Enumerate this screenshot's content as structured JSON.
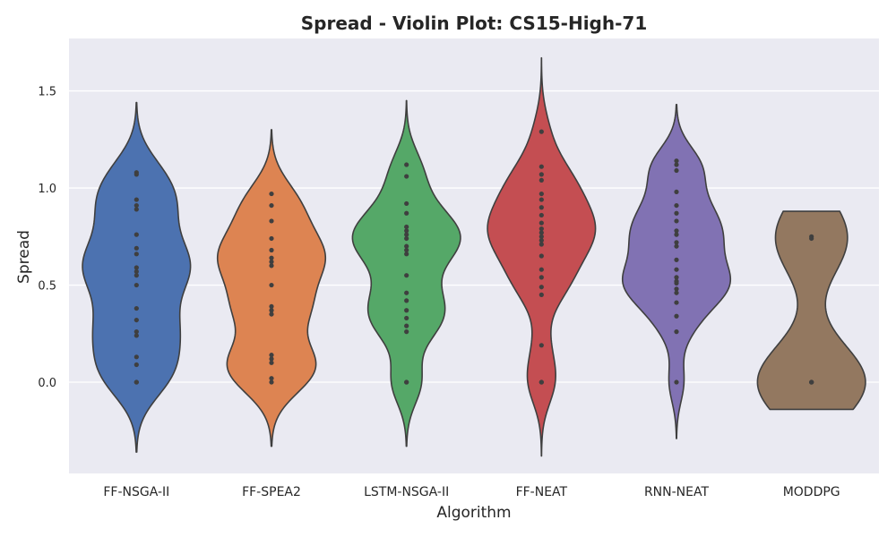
{
  "chart_data": {
    "type": "violin",
    "title": "Spread - Violin Plot: CS15-High-71",
    "xlabel": "Algorithm",
    "ylabel": "Spread",
    "ylim": [
      -0.47,
      1.77
    ],
    "yticks": [
      0.0,
      0.5,
      1.0,
      1.5
    ],
    "ytick_labels": [
      "0.0",
      "0.5",
      "1.0",
      "1.5"
    ],
    "grid": true,
    "background": "#EAEAF2",
    "categories": [
      "FF-NSGA-II",
      "FF-SPEA2",
      "LSTM-NSGA-II",
      "FF-NEAT",
      "RNN-NEAT",
      "MODDPG"
    ],
    "series": [
      {
        "name": "FF-NSGA-II",
        "color": "#4C72B0",
        "extent": [
          -0.36,
          1.44
        ],
        "points": [
          1.08,
          1.07,
          0.94,
          0.91,
          0.89,
          0.76,
          0.69,
          0.66,
          0.59,
          0.57,
          0.55,
          0.5,
          0.38,
          0.32,
          0.26,
          0.24,
          0.13,
          0.09,
          0.0,
          0.0
        ]
      },
      {
        "name": "FF-SPEA2",
        "color": "#DD8452",
        "extent": [
          -0.33,
          1.3
        ],
        "points": [
          0.97,
          0.91,
          0.83,
          0.74,
          0.68,
          0.64,
          0.62,
          0.6,
          0.5,
          0.39,
          0.37,
          0.35,
          0.14,
          0.12,
          0.1,
          0.02,
          0.0
        ]
      },
      {
        "name": "LSTM-NSGA-II",
        "color": "#55A868",
        "extent": [
          -0.33,
          1.45
        ],
        "points": [
          1.12,
          1.06,
          0.92,
          0.87,
          0.8,
          0.78,
          0.76,
          0.74,
          0.7,
          0.68,
          0.66,
          0.55,
          0.46,
          0.42,
          0.37,
          0.33,
          0.29,
          0.26,
          0.0,
          0.0
        ]
      },
      {
        "name": "FF-NEAT",
        "color": "#C44E52",
        "extent": [
          -0.38,
          1.67
        ],
        "points": [
          1.29,
          1.11,
          1.07,
          1.04,
          0.97,
          0.94,
          0.9,
          0.86,
          0.82,
          0.79,
          0.77,
          0.75,
          0.73,
          0.71,
          0.65,
          0.58,
          0.54,
          0.49,
          0.45,
          0.19,
          0.0,
          0.0
        ]
      },
      {
        "name": "RNN-NEAT",
        "color": "#8172B3",
        "extent": [
          -0.29,
          1.43
        ],
        "points": [
          1.14,
          1.12,
          1.09,
          0.98,
          0.91,
          0.87,
          0.83,
          0.78,
          0.76,
          0.72,
          0.7,
          0.63,
          0.58,
          0.54,
          0.52,
          0.51,
          0.48,
          0.46,
          0.41,
          0.34,
          0.26,
          0.0
        ]
      },
      {
        "name": "MODDPG",
        "color": "#937860",
        "extent": [
          -0.14,
          0.88
        ],
        "points": [
          0.75,
          0.74,
          0.0,
          0.0,
          0.0
        ]
      }
    ]
  }
}
